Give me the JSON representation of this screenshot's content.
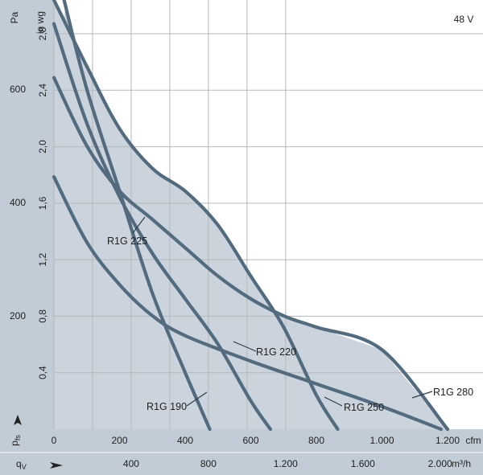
{
  "chart_data": {
    "type": "line",
    "voltage_label": "48 V",
    "y_left_unit": "Pa",
    "y_left_ticks": [
      "200",
      "400",
      "600"
    ],
    "y_left_ticks_values": [
      200,
      400,
      600
    ],
    "y_right_unit": "in wg",
    "y_right_ticks": [
      "0,4",
      "0,8",
      "1,2",
      "1,6",
      "2,0",
      "2,4",
      "2,8"
    ],
    "y_right_ticks_values": [
      0.4,
      0.8,
      1.2,
      1.6,
      2.0,
      2.4,
      2.8
    ],
    "y_label": "p_fs",
    "x_cfm_ticks": [
      "0",
      "200",
      "400",
      "600",
      "800",
      "1.000",
      "1.200"
    ],
    "x_cfm_ticks_values": [
      0,
      200,
      400,
      600,
      800,
      1000,
      1200
    ],
    "x_cfm_unit": "cfm",
    "x_label": "q_v",
    "x_m3h_ticks": [
      "400",
      "800",
      "1.200",
      "1.600",
      "2.000"
    ],
    "x_m3h_ticks_values": [
      400,
      800,
      1200,
      1600,
      2000
    ],
    "x_m3h_unit": "m³/h",
    "xlim_cfm": [
      0,
      1200
    ],
    "ylim_pa": [
      0,
      757
    ],
    "series": [
      {
        "name": "R1G 190",
        "x": [
          31,
          100,
          200,
          300,
          400,
          460,
          475
        ],
        "y": [
          757,
          600,
          420,
          240,
          100,
          20,
          0
        ]
      },
      {
        "name": "R1G 220",
        "x": [
          0,
          100,
          200,
          300,
          400,
          500,
          600,
          660
        ],
        "y": [
          715,
          540,
          410,
          310,
          230,
          150,
          50,
          0
        ]
      },
      {
        "name": "R1G 225",
        "x": [
          0,
          100,
          200,
          300,
          400,
          600,
          800,
          1000,
          1180
        ],
        "y": [
          445,
          330,
          255,
          200,
          165,
          120,
          80,
          40,
          0
        ]
      },
      {
        "name": "R1G 250",
        "x": [
          0,
          100,
          200,
          300,
          400,
          500,
          600,
          700,
          800,
          865
        ],
        "y": [
          757,
          640,
          530,
          460,
          420,
          360,
          270,
          180,
          60,
          0
        ]
      },
      {
        "name": "R1G 280",
        "x": [
          0,
          100,
          200,
          300,
          400,
          500,
          600,
          700,
          800,
          1000,
          1200
        ],
        "y": [
          620,
          500,
          420,
          370,
          320,
          270,
          230,
          200,
          180,
          140,
          0
        ]
      }
    ],
    "annotation_labels": [
      "R1G 225",
      "R1G 220",
      "R1G 190",
      "R1G 250",
      "R1G 280"
    ],
    "grid": true,
    "background_color": "#c2ccd7",
    "plot_area_color": "#ffffff",
    "curve_color": "#536b7e"
  }
}
